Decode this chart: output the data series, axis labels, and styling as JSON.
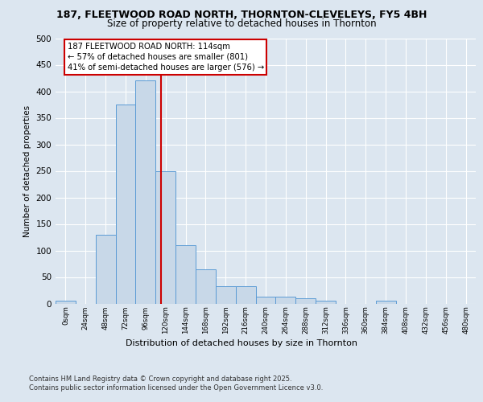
{
  "title_line1": "187, FLEETWOOD ROAD NORTH, THORNTON-CLEVELEYS, FY5 4BH",
  "title_line2": "Size of property relative to detached houses in Thornton",
  "xlabel": "Distribution of detached houses by size in Thornton",
  "ylabel": "Number of detached properties",
  "bin_labels": [
    "0sqm",
    "24sqm",
    "48sqm",
    "72sqm",
    "96sqm",
    "120sqm",
    "144sqm",
    "168sqm",
    "192sqm",
    "216sqm",
    "240sqm",
    "264sqm",
    "288sqm",
    "312sqm",
    "336sqm",
    "360sqm",
    "384sqm",
    "408sqm",
    "432sqm",
    "456sqm",
    "480sqm"
  ],
  "bar_values": [
    5,
    0,
    130,
    375,
    420,
    250,
    110,
    65,
    32,
    32,
    13,
    13,
    10,
    5,
    0,
    0,
    6,
    0,
    0,
    0,
    0
  ],
  "bar_color": "#c8d8e8",
  "bar_edgecolor": "#5b9bd5",
  "vline_x": 114,
  "vline_color": "#cc0000",
  "annotation_text": "187 FLEETWOOD ROAD NORTH: 114sqm\n← 57% of detached houses are smaller (801)\n41% of semi-detached houses are larger (576) →",
  "annotation_box_color": "#cc0000",
  "ylim": [
    0,
    500
  ],
  "yticks": [
    0,
    50,
    100,
    150,
    200,
    250,
    300,
    350,
    400,
    450,
    500
  ],
  "bg_color": "#dce6f0",
  "plot_bg_color": "#dce6f0",
  "footer_text": "Contains HM Land Registry data © Crown copyright and database right 2025.\nContains public sector information licensed under the Open Government Licence v3.0.",
  "bin_width": 24
}
